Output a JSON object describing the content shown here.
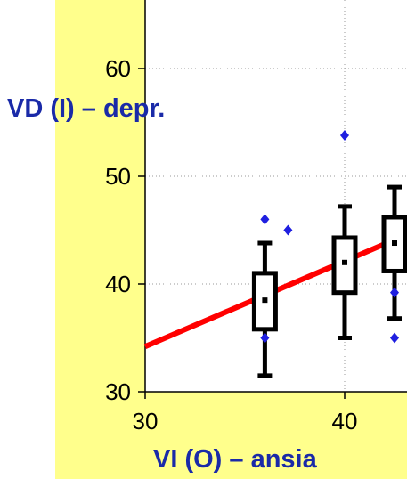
{
  "chart_data": {
    "type": "scatter",
    "title": "",
    "xlabel": "VI (O) – ansia",
    "ylabel": "VD (I) – depr.",
    "xlim": [
      30,
      43
    ],
    "ylim": [
      30,
      65
    ],
    "x_ticks": [
      "30",
      "40"
    ],
    "y_ticks": [
      "60",
      "50",
      "40",
      "30"
    ],
    "grid": true,
    "regression_line": {
      "x": [
        30,
        43
      ],
      "y": [
        34.2,
        44.5
      ],
      "color": "#ff0000"
    },
    "boxes": [
      {
        "x": 36,
        "whisker_low": 31.5,
        "q1": 35.8,
        "median": 38.5,
        "q3": 41,
        "whisker_high": 43.8,
        "outliers": [
          46,
          45,
          35
        ]
      },
      {
        "x": 40,
        "whisker_low": 35,
        "q1": 39.2,
        "median": 42,
        "q3": 44.3,
        "whisker_high": 47.2,
        "outliers": [
          53.8
        ]
      },
      {
        "x": 42.5,
        "whisker_low": 36.8,
        "q1": 41.2,
        "median": 43.8,
        "q3": 46.2,
        "whisker_high": 49,
        "outliers": [
          35,
          39.2
        ]
      }
    ],
    "colors": {
      "panel": "#ffff8c",
      "plot_area": "#ffffff",
      "regression": "#ff0000",
      "outlier": "#1f1fe0",
      "label": "#1a2aa8"
    }
  }
}
